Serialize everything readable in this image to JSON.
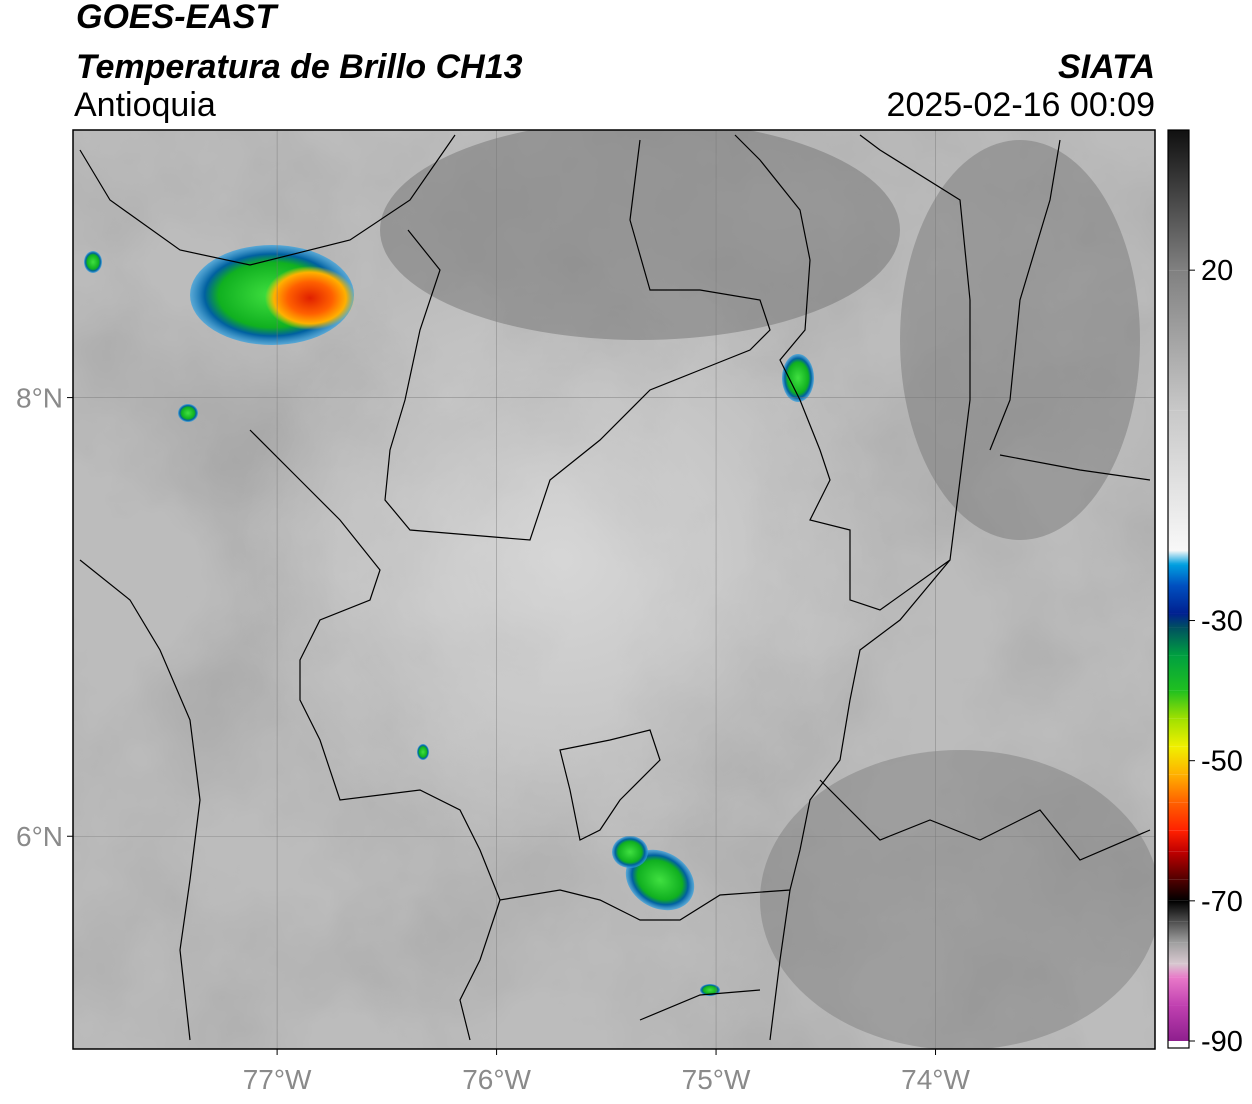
{
  "chart_data": {
    "type": "map",
    "title": "GOES-EAST",
    "subtitle": "Temperatura de Brillo CH13",
    "region": "Antioquia",
    "source": "SIATA",
    "datetime": "2025-02-16 00:09",
    "xlim": [
      -77.93,
      -73.0
    ],
    "ylim": [
      5.03,
      9.22
    ],
    "xticks": [
      {
        "value": -77,
        "label": "77°W"
      },
      {
        "value": -76,
        "label": "76°W"
      },
      {
        "value": -75,
        "label": "75°W"
      },
      {
        "value": -74,
        "label": "74°W"
      }
    ],
    "yticks": [
      {
        "value": 6,
        "label": "6°N"
      },
      {
        "value": 8,
        "label": "8°N"
      }
    ],
    "grid": true,
    "colorbar": {
      "lim": [
        -91,
        40
      ],
      "ticks": [
        20,
        -30,
        -50,
        -70,
        -90
      ],
      "colormap": [
        {
          "value": -91,
          "color": "#ffffff"
        },
        {
          "value": -90,
          "color": "#8e1f8e"
        },
        {
          "value": -85,
          "color": "#c040b0"
        },
        {
          "value": -81,
          "color": "#e878c8"
        },
        {
          "value": -79,
          "color": "#d8c8d0"
        },
        {
          "value": -76,
          "color": "#a0a0a0"
        },
        {
          "value": -73,
          "color": "#505050"
        },
        {
          "value": -70,
          "color": "#000000"
        },
        {
          "value": -67,
          "color": "#500000"
        },
        {
          "value": -63,
          "color": "#c00000"
        },
        {
          "value": -60,
          "color": "#ff2000"
        },
        {
          "value": -56,
          "color": "#ff6000"
        },
        {
          "value": -52,
          "color": "#ffb000"
        },
        {
          "value": -48,
          "color": "#f0f000"
        },
        {
          "value": -44,
          "color": "#a0e000"
        },
        {
          "value": -40,
          "color": "#20c020"
        },
        {
          "value": -35,
          "color": "#00a040"
        },
        {
          "value": -31,
          "color": "#005060"
        },
        {
          "value": -29,
          "color": "#002090"
        },
        {
          "value": -25,
          "color": "#0050c0"
        },
        {
          "value": -22,
          "color": "#00a0e0"
        },
        {
          "value": -20,
          "color": "#f8f8f8"
        },
        {
          "value": 0,
          "color": "#c8c8c8"
        },
        {
          "value": 20,
          "color": "#808080"
        },
        {
          "value": 40,
          "color": "#101010"
        }
      ]
    }
  }
}
